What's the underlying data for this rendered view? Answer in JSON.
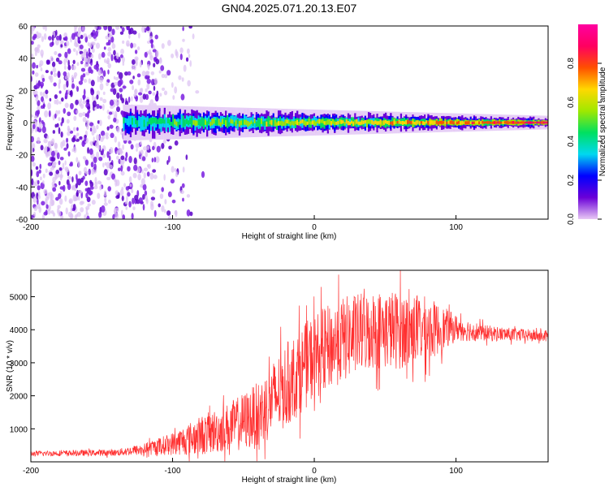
{
  "title": "GN04.2025.071.20.13.E07",
  "chart_data": [
    {
      "type": "heatmap",
      "name": "spectrogram",
      "xlabel": "Height of straight line (km)",
      "ylabel": "Frequency (Hz)",
      "xlim": [
        -200,
        165
      ],
      "ylim": [
        -60,
        60
      ],
      "xticks": [
        -200,
        -100,
        0,
        100
      ],
      "yticks": [
        -60,
        -40,
        -20,
        0,
        20,
        40,
        60
      ],
      "colorbar": {
        "label": "Normalized spectral amplitude",
        "range": [
          0,
          1
        ],
        "ticks": [
          0.0,
          0.2,
          0.4,
          0.6,
          0.8
        ],
        "colors": [
          "#e8c8f4",
          "#6a00d8",
          "#0000ff",
          "#00d8f0",
          "#00e060",
          "#a0e800",
          "#ffd800",
          "#ff5000",
          "#ff0060",
          "#ff00a0"
        ]
      },
      "description_of_signal": {
        "noise_region_km": [
          -200,
          -135
        ],
        "band_start_km": -135,
        "band_center_hz": 0,
        "band_halfwidth_hz_at_start": 8,
        "band_halfwidth_hz_at_end": 3
      }
    },
    {
      "type": "line",
      "name": "snr",
      "xlabel": "Height of straight line (km)",
      "ylabel": "SNR (10 * v/v)",
      "xlim": [
        -200,
        165
      ],
      "ylim": [
        0,
        5800
      ],
      "xticks": [
        -200,
        -100,
        0,
        100
      ],
      "yticks": [
        1000,
        2000,
        3000,
        4000,
        5000
      ],
      "color": "#ff3030",
      "envelope": {
        "x": [
          -200,
          -140,
          -120,
          -100,
          -80,
          -60,
          -40,
          -20,
          0,
          20,
          40,
          60,
          80,
          100,
          120,
          140,
          165
        ],
        "mean": [
          250,
          280,
          380,
          550,
          800,
          1050,
          1400,
          2300,
          3200,
          3700,
          4000,
          4000,
          4000,
          4050,
          3900,
          3850,
          3800
        ],
        "amplitude": [
          80,
          100,
          180,
          350,
          600,
          750,
          1000,
          1300,
          1300,
          1300,
          1200,
          1200,
          1000,
          400,
          250,
          200,
          180
        ]
      }
    }
  ]
}
